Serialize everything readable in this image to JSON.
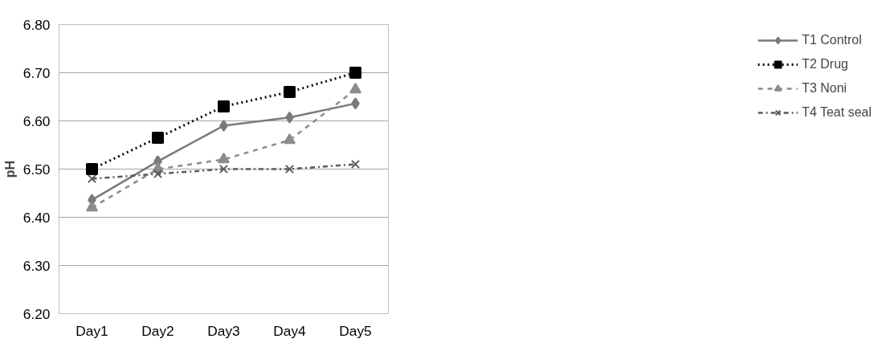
{
  "chart_data": {
    "type": "line",
    "ylabel": "pH",
    "categories": [
      "Day1",
      "Day2",
      "Day3",
      "Day4",
      "Day5"
    ],
    "series": [
      {
        "name": "T1 Control",
        "color": "#7a7a7a",
        "values": [
          6.436,
          6.516,
          6.59,
          6.607,
          6.636
        ],
        "marker": "diamond",
        "line_style": "solid"
      },
      {
        "name": "T2 Drug",
        "color": "#000000",
        "values": [
          6.5,
          6.565,
          6.63,
          6.66,
          6.7
        ],
        "marker": "square",
        "line_style": "dotted"
      },
      {
        "name": "T3 Noni",
        "color": "#8c8c8c",
        "values": [
          6.42,
          6.5,
          6.52,
          6.56,
          6.665
        ],
        "marker": "triangle",
        "line_style": "dashed"
      },
      {
        "name": "T4 Teat seal",
        "color": "#595959",
        "values": [
          6.48,
          6.49,
          6.5,
          6.5,
          6.51
        ],
        "marker": "cross",
        "line_style": "dashdot"
      }
    ],
    "ylim": [
      6.2,
      6.8
    ],
    "yticks": [
      {
        "value": 6.2,
        "label": "6.20"
      },
      {
        "value": 6.3,
        "label": "6.30"
      },
      {
        "value": 6.4,
        "label": "6.40"
      },
      {
        "value": 6.5,
        "label": "6.50"
      },
      {
        "value": 6.6,
        "label": "6.60"
      },
      {
        "value": 6.7,
        "label": "6.70"
      },
      {
        "value": 6.8,
        "label": "6.80"
      }
    ],
    "grid": "y",
    "legend": "right"
  }
}
